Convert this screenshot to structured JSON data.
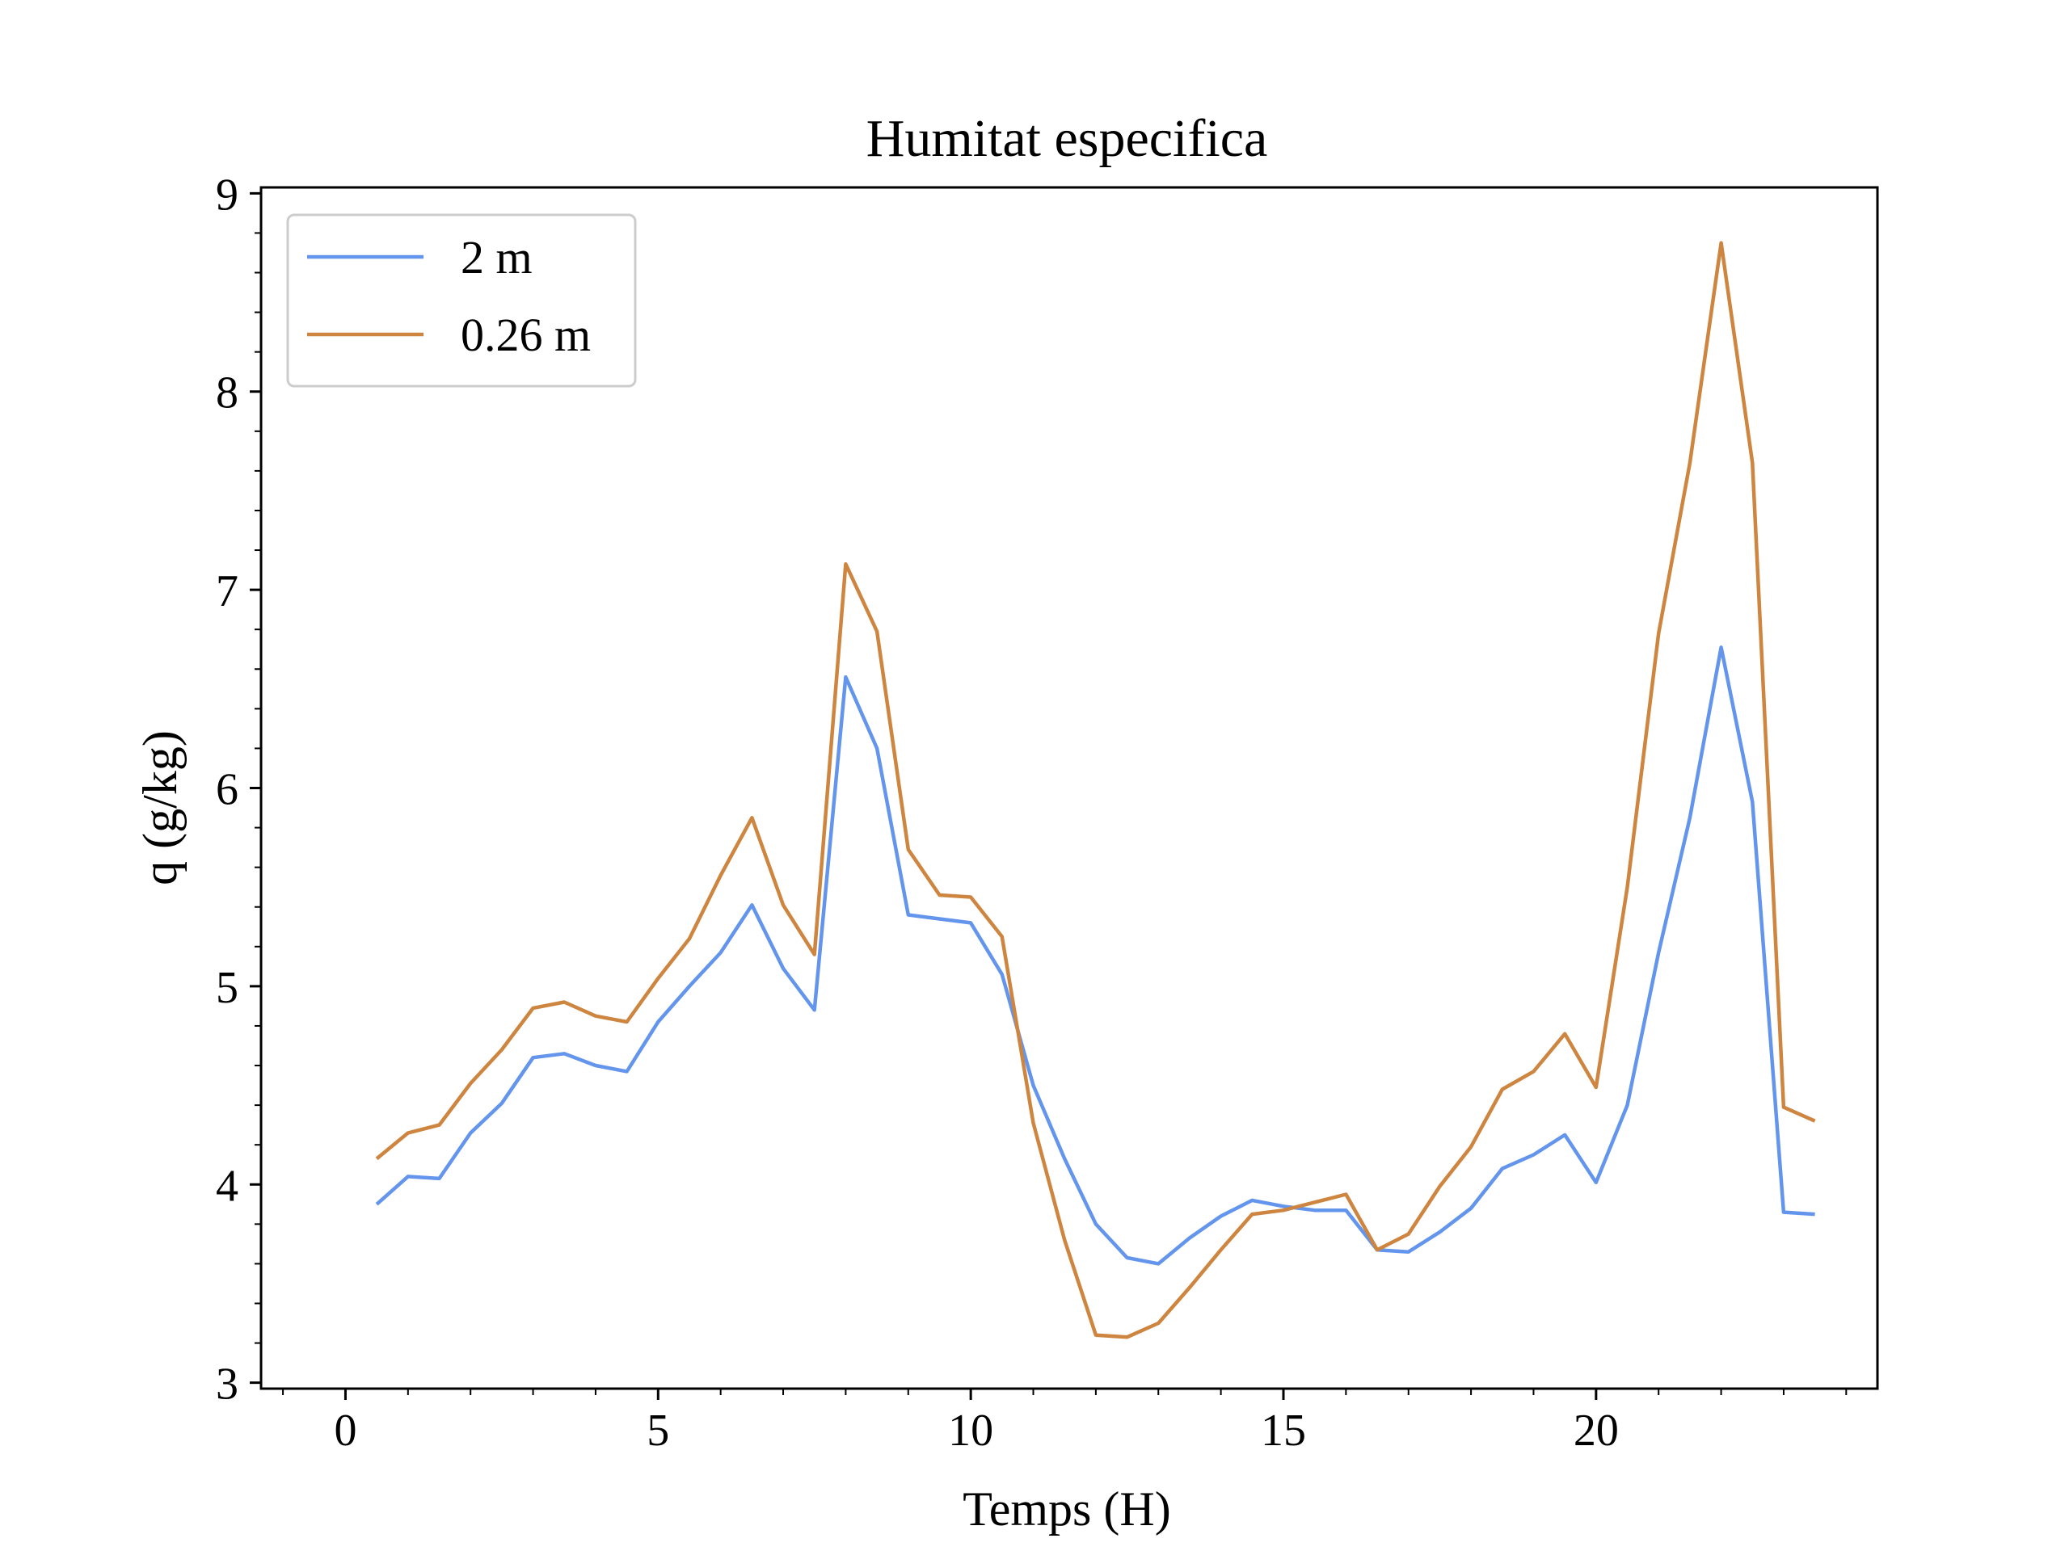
{
  "chart_data": {
    "type": "line",
    "title": "Humitat especifica",
    "xlabel": "Temps (H)",
    "ylabel": "q (g/kg)",
    "xlim": [
      -1.35,
      24.5
    ],
    "ylim": [
      2.97,
      9.03
    ],
    "xticks": [
      0,
      5,
      10,
      15,
      20
    ],
    "xtick_labels": [
      "0",
      "5",
      "10",
      "15",
      "20"
    ],
    "yticks": [
      3,
      4,
      5,
      6,
      7,
      8,
      9
    ],
    "ytick_labels": [
      "3",
      "4",
      "5",
      "6",
      "7",
      "8",
      "9"
    ],
    "grid": false,
    "legend_position": "upper-left",
    "x": [
      0.5,
      1.0,
      1.5,
      2.0,
      2.5,
      3.0,
      3.5,
      4.0,
      4.5,
      5.0,
      5.5,
      6.0,
      6.5,
      7.0,
      7.5,
      8.0,
      8.5,
      9.0,
      9.5,
      10.0,
      10.5,
      11.0,
      11.5,
      12.0,
      12.5,
      13.0,
      13.5,
      14.0,
      14.5,
      15.0,
      15.5,
      16.0,
      16.5,
      17.0,
      17.5,
      18.0,
      18.5,
      19.0,
      19.5,
      20.0,
      20.5,
      21.0,
      21.5,
      22.0,
      22.5,
      23.0,
      23.5
    ],
    "series": [
      {
        "name": "2 m",
        "color": "#6495ED",
        "values": [
          3.9,
          4.04,
          4.03,
          4.26,
          4.41,
          4.64,
          4.66,
          4.6,
          4.57,
          4.82,
          5.0,
          5.17,
          5.41,
          5.09,
          4.88,
          6.56,
          6.2,
          5.36,
          5.34,
          5.32,
          5.06,
          4.5,
          4.13,
          3.8,
          3.63,
          3.6,
          3.73,
          3.84,
          3.92,
          3.89,
          3.87,
          3.87,
          3.67,
          3.66,
          3.76,
          3.88,
          4.08,
          4.15,
          4.25,
          4.01,
          4.4,
          5.17,
          5.85,
          6.71,
          5.93,
          3.86,
          3.85
        ]
      },
      {
        "name": "0.26 m",
        "color": "#CD853F",
        "values": [
          4.13,
          4.26,
          4.3,
          4.51,
          4.68,
          4.89,
          4.92,
          4.85,
          4.82,
          5.04,
          5.24,
          5.56,
          5.85,
          5.41,
          5.16,
          7.13,
          6.79,
          5.69,
          5.46,
          5.45,
          5.25,
          4.31,
          3.72,
          3.24,
          3.23,
          3.3,
          3.48,
          3.67,
          3.85,
          3.87,
          3.91,
          3.95,
          3.67,
          3.75,
          3.99,
          4.19,
          4.48,
          4.57,
          4.76,
          4.49,
          5.5,
          6.78,
          7.64,
          8.75,
          7.64,
          4.39,
          4.32
        ]
      }
    ]
  }
}
